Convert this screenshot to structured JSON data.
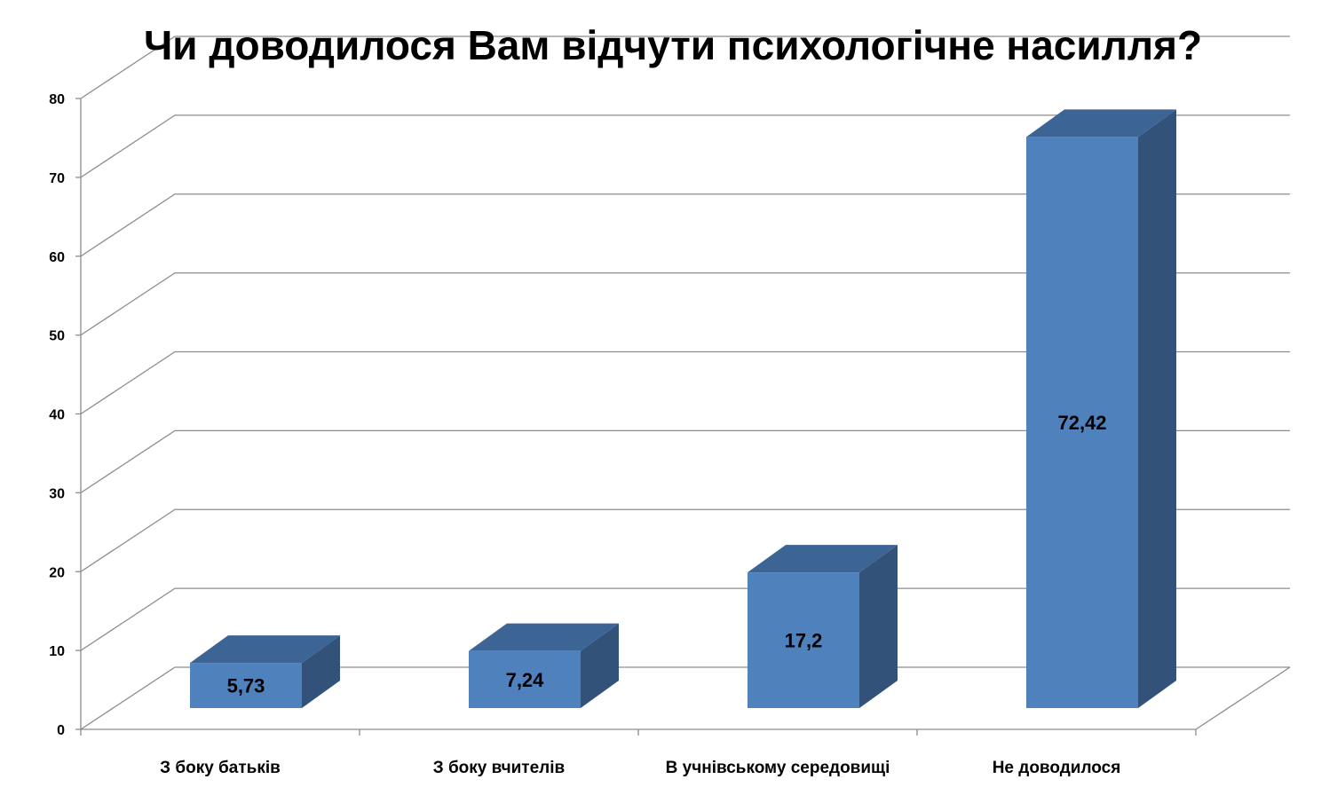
{
  "chart_data": {
    "type": "bar",
    "title": "Чи доводилося Вам відчути психологічне насилля?",
    "categories": [
      "З боку батьків",
      "З боку вчителів",
      "В учнівському середовищі",
      "Не доводилося"
    ],
    "values": [
      5.73,
      7.24,
      17.2,
      72.42
    ],
    "data_labels": [
      "5,73",
      "7,24",
      "17,2",
      "72,42"
    ],
    "yticks": [
      0,
      10,
      20,
      30,
      40,
      50,
      60,
      70,
      80
    ],
    "ylim": [
      0,
      80
    ],
    "xlabel": "",
    "ylabel": "",
    "grid": true,
    "style": "3d-bar",
    "colors": {
      "bar_front": "#4F81BD",
      "bar_top": "#3C6596",
      "bar_side": "#32527A",
      "grid": "#8C8C8C"
    }
  }
}
